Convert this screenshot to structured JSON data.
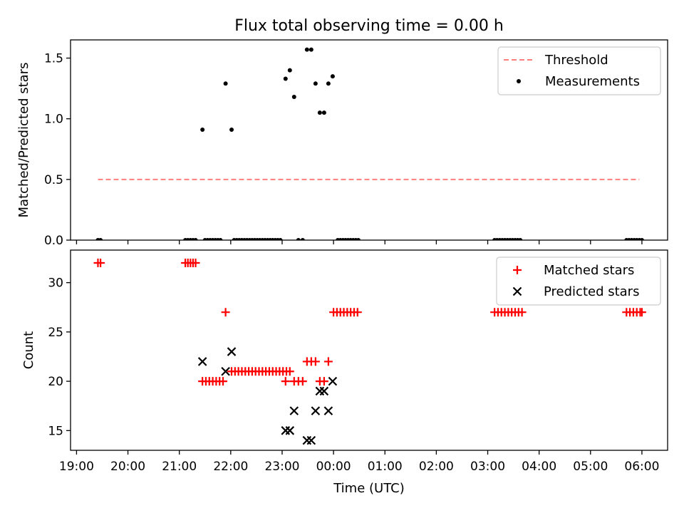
{
  "figure": {
    "title": "Flux total observing time = 0.00 h",
    "xlabel": "Time (UTC)"
  },
  "colors": {
    "threshold": "#ff7f7f",
    "measurements": "#000000",
    "matched": "#ff0000",
    "predicted": "#000000"
  },
  "chart_data": [
    {
      "type": "scatter",
      "panel": "top",
      "title": "Flux total observing time = 0.00 h",
      "xlabel": "",
      "ylabel": "Matched/Predicted stars",
      "xlim": [
        "18:53",
        "06:30"
      ],
      "ylim": [
        0,
        1.65
      ],
      "yticks": [
        0.0,
        0.5,
        1.0,
        1.5
      ],
      "ytick_labels": [
        "0.0",
        "0.5",
        "1.0",
        "1.5"
      ],
      "grid": false,
      "legend": "top-right",
      "series": [
        {
          "name": "Threshold",
          "kind": "line",
          "style": "dashed",
          "points": [
            [
              "19:25",
              0.5
            ],
            [
              "05:57",
              0.5
            ]
          ]
        },
        {
          "name": "Measurements",
          "kind": "scatter",
          "marker": "dot",
          "points": [
            [
              "19:25",
              0.0
            ],
            [
              "19:28",
              0.0
            ],
            [
              "21:07",
              0.0
            ],
            [
              "21:10",
              0.0
            ],
            [
              "21:13",
              0.0
            ],
            [
              "21:16",
              0.0
            ],
            [
              "21:19",
              0.0
            ],
            [
              "21:27",
              0.91
            ],
            [
              "21:30",
              0.0
            ],
            [
              "21:33",
              0.0
            ],
            [
              "21:36",
              0.0
            ],
            [
              "21:39",
              0.0
            ],
            [
              "21:42",
              0.0
            ],
            [
              "21:45",
              0.0
            ],
            [
              "21:48",
              0.0
            ],
            [
              "21:54",
              1.29
            ],
            [
              "22:01",
              0.91
            ],
            [
              "22:04",
              0.0
            ],
            [
              "22:07",
              0.0
            ],
            [
              "22:10",
              0.0
            ],
            [
              "22:13",
              0.0
            ],
            [
              "22:16",
              0.0
            ],
            [
              "22:19",
              0.0
            ],
            [
              "22:22",
              0.0
            ],
            [
              "22:25",
              0.0
            ],
            [
              "22:28",
              0.0
            ],
            [
              "22:31",
              0.0
            ],
            [
              "22:34",
              0.0
            ],
            [
              "22:37",
              0.0
            ],
            [
              "22:40",
              0.0
            ],
            [
              "22:43",
              0.0
            ],
            [
              "22:46",
              0.0
            ],
            [
              "22:49",
              0.0
            ],
            [
              "22:52",
              0.0
            ],
            [
              "22:55",
              0.0
            ],
            [
              "22:58",
              0.0
            ],
            [
              "23:04",
              1.33
            ],
            [
              "23:09",
              1.4
            ],
            [
              "23:14",
              1.18
            ],
            [
              "23:19",
              0.0
            ],
            [
              "23:24",
              0.0
            ],
            [
              "23:29",
              1.57
            ],
            [
              "23:34",
              1.57
            ],
            [
              "23:39",
              1.29
            ],
            [
              "23:44",
              1.05
            ],
            [
              "23:49",
              1.05
            ],
            [
              "23:54",
              1.29
            ],
            [
              "23:59",
              1.35
            ],
            [
              "00:05",
              0.0
            ],
            [
              "00:08",
              0.0
            ],
            [
              "00:11",
              0.0
            ],
            [
              "00:14",
              0.0
            ],
            [
              "00:17",
              0.0
            ],
            [
              "00:20",
              0.0
            ],
            [
              "00:23",
              0.0
            ],
            [
              "00:26",
              0.0
            ],
            [
              "00:29",
              0.0
            ],
            [
              "03:08",
              0.0
            ],
            [
              "03:11",
              0.0
            ],
            [
              "03:14",
              0.0
            ],
            [
              "03:17",
              0.0
            ],
            [
              "03:20",
              0.0
            ],
            [
              "03:23",
              0.0
            ],
            [
              "03:26",
              0.0
            ],
            [
              "03:29",
              0.0
            ],
            [
              "03:32",
              0.0
            ],
            [
              "03:35",
              0.0
            ],
            [
              "03:38",
              0.0
            ],
            [
              "05:42",
              0.0
            ],
            [
              "05:45",
              0.0
            ],
            [
              "05:48",
              0.0
            ],
            [
              "05:51",
              0.0
            ],
            [
              "05:54",
              0.0
            ],
            [
              "05:57",
              0.0
            ],
            [
              "06:00",
              0.0
            ]
          ]
        }
      ]
    },
    {
      "type": "scatter",
      "panel": "bottom",
      "xlabel": "Time (UTC)",
      "ylabel": "Count",
      "xlim": [
        "18:53",
        "06:30"
      ],
      "ylim": [
        13,
        33.3
      ],
      "xticks": [
        "19:00",
        "20:00",
        "21:00",
        "22:00",
        "23:00",
        "00:00",
        "01:00",
        "02:00",
        "03:00",
        "04:00",
        "05:00",
        "06:00"
      ],
      "yticks": [
        15,
        20,
        25,
        30
      ],
      "ytick_labels": [
        "15",
        "20",
        "25",
        "30"
      ],
      "grid": false,
      "legend": "top-right",
      "series": [
        {
          "name": "Matched stars",
          "marker": "plus",
          "points": [
            [
              "19:25",
              32
            ],
            [
              "19:28",
              32
            ],
            [
              "21:07",
              32
            ],
            [
              "21:10",
              32
            ],
            [
              "21:13",
              32
            ],
            [
              "21:16",
              32
            ],
            [
              "21:19",
              32
            ],
            [
              "21:27",
              20
            ],
            [
              "21:31",
              20
            ],
            [
              "21:35",
              20
            ],
            [
              "21:39",
              20
            ],
            [
              "21:43",
              20
            ],
            [
              "21:47",
              20
            ],
            [
              "21:51",
              20
            ],
            [
              "21:54",
              27
            ],
            [
              "22:01",
              21
            ],
            [
              "22:05",
              21
            ],
            [
              "22:09",
              21
            ],
            [
              "22:13",
              21
            ],
            [
              "22:17",
              21
            ],
            [
              "22:21",
              21
            ],
            [
              "22:25",
              21
            ],
            [
              "22:29",
              21
            ],
            [
              "22:33",
              21
            ],
            [
              "22:37",
              21
            ],
            [
              "22:41",
              21
            ],
            [
              "22:45",
              21
            ],
            [
              "22:49",
              21
            ],
            [
              "22:53",
              21
            ],
            [
              "22:57",
              21
            ],
            [
              "23:01",
              21
            ],
            [
              "23:05",
              21
            ],
            [
              "23:09",
              21
            ],
            [
              "23:04",
              20
            ],
            [
              "23:14",
              20
            ],
            [
              "23:19",
              20
            ],
            [
              "23:24",
              20
            ],
            [
              "23:29",
              22
            ],
            [
              "23:34",
              22
            ],
            [
              "23:39",
              22
            ],
            [
              "23:44",
              20
            ],
            [
              "23:49",
              20
            ],
            [
              "23:54",
              22
            ],
            [
              "00:00",
              27
            ],
            [
              "00:04",
              27
            ],
            [
              "00:08",
              27
            ],
            [
              "00:12",
              27
            ],
            [
              "00:16",
              27
            ],
            [
              "00:20",
              27
            ],
            [
              "00:24",
              27
            ],
            [
              "00:28",
              27
            ],
            [
              "03:08",
              27
            ],
            [
              "03:12",
              27
            ],
            [
              "03:16",
              27
            ],
            [
              "03:20",
              27
            ],
            [
              "03:24",
              27
            ],
            [
              "03:28",
              27
            ],
            [
              "03:32",
              27
            ],
            [
              "03:36",
              27
            ],
            [
              "03:40",
              27
            ],
            [
              "05:42",
              27
            ],
            [
              "05:46",
              27
            ],
            [
              "05:50",
              27
            ],
            [
              "05:54",
              27
            ],
            [
              "05:58",
              27
            ],
            [
              "06:00",
              27
            ]
          ]
        },
        {
          "name": "Predicted stars",
          "marker": "x",
          "points": [
            [
              "21:27",
              22
            ],
            [
              "21:54",
              21
            ],
            [
              "22:01",
              23
            ],
            [
              "23:04",
              15
            ],
            [
              "23:09",
              15
            ],
            [
              "23:14",
              17
            ],
            [
              "23:29",
              14
            ],
            [
              "23:34",
              14
            ],
            [
              "23:39",
              17
            ],
            [
              "23:44",
              19
            ],
            [
              "23:49",
              19
            ],
            [
              "23:54",
              17
            ],
            [
              "23:59",
              20
            ]
          ]
        }
      ]
    }
  ]
}
